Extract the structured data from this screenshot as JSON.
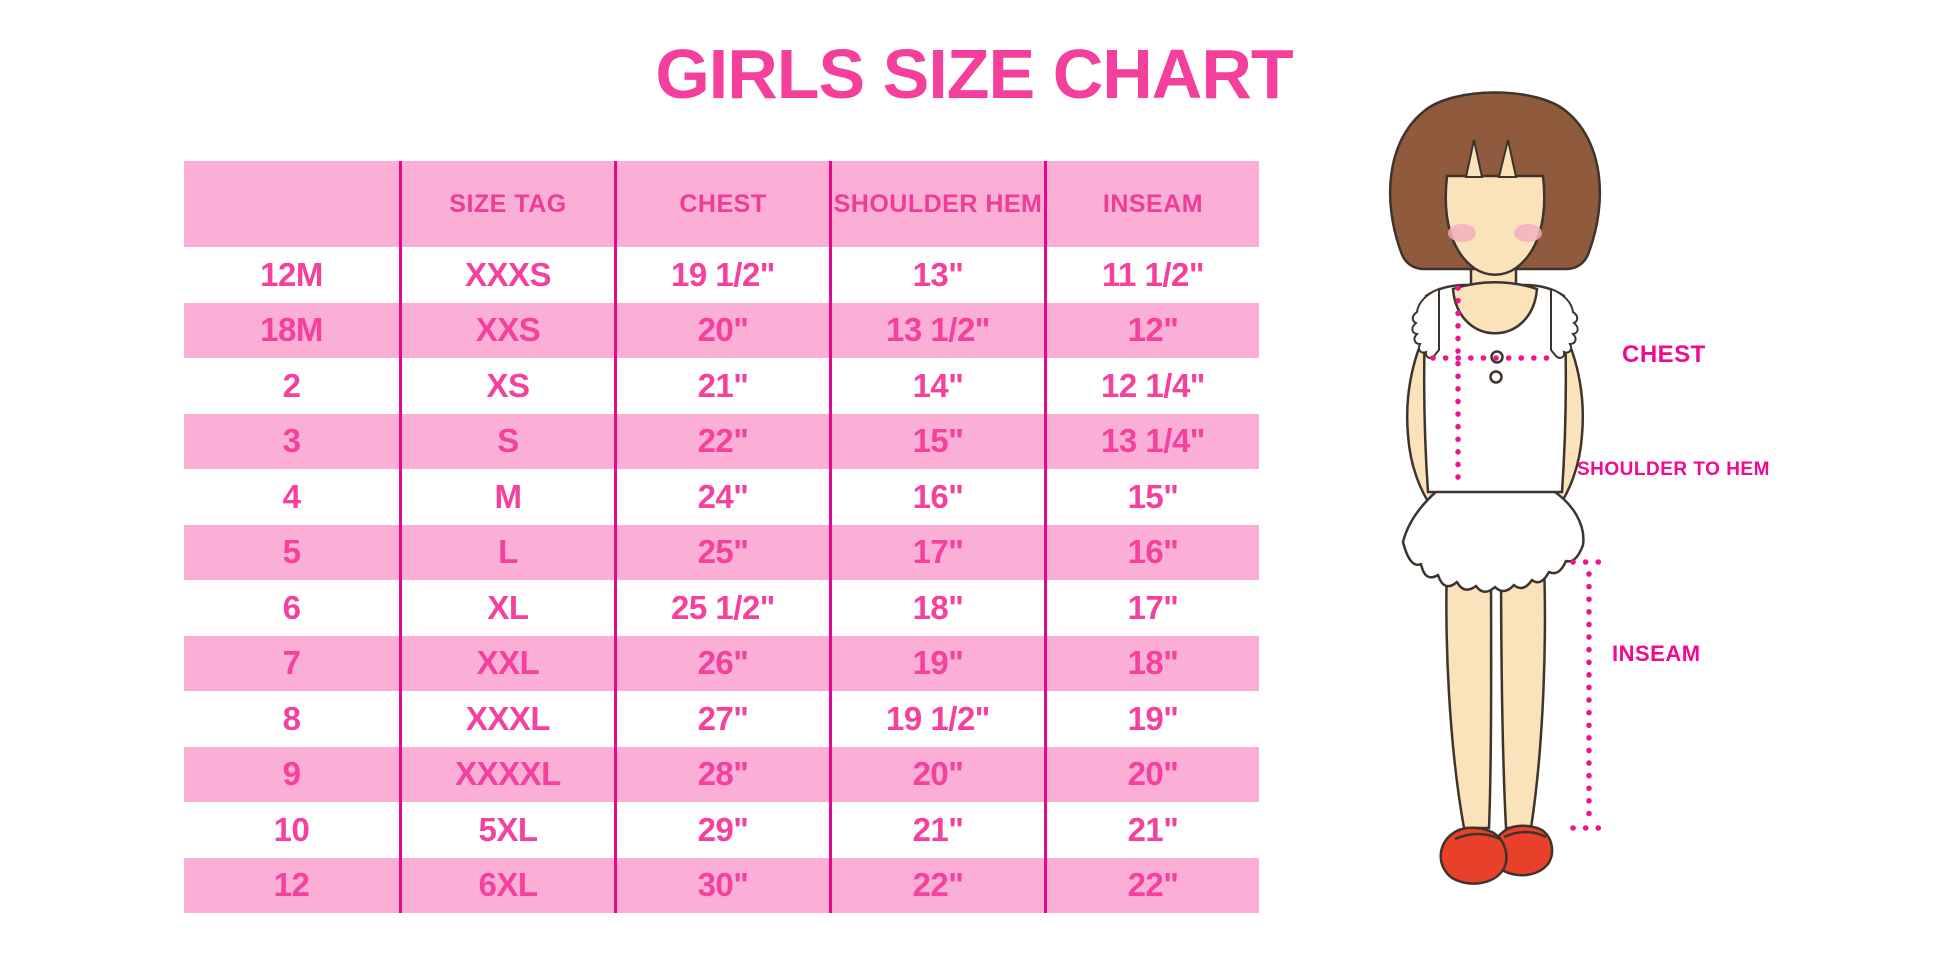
{
  "page_title": "GIRLS SIZE CHART",
  "chart_data": {
    "type": "table",
    "title": "GIRLS SIZE CHART",
    "columns": [
      "",
      "SIZE TAG",
      "CHEST",
      "SHOULDER HEM",
      "INSEAM"
    ],
    "rows": [
      [
        "12M",
        "XXXS",
        "19 1/2\"",
        "13\"",
        "11 1/2\""
      ],
      [
        "18M",
        "XXS",
        "20\"",
        "13 1/2\"",
        "12\""
      ],
      [
        "2",
        "XS",
        "21\"",
        "14\"",
        "12 1/4\""
      ],
      [
        "3",
        "S",
        "22\"",
        "15\"",
        "13 1/4\""
      ],
      [
        "4",
        "M",
        "24\"",
        "16\"",
        "15\""
      ],
      [
        "5",
        "L",
        "25\"",
        "17\"",
        "16\""
      ],
      [
        "6",
        "XL",
        "25 1/2\"",
        "18\"",
        "17\""
      ],
      [
        "7",
        "XXL",
        "26\"",
        "19\"",
        "18\""
      ],
      [
        "8",
        "XXXL",
        "27\"",
        "19 1/2\"",
        "19\""
      ],
      [
        "9",
        "XXXXL",
        "28\"",
        "20\"",
        "20\""
      ],
      [
        "10",
        "5XL",
        "29\"",
        "21\"",
        "21\""
      ],
      [
        "12",
        "6XL",
        "30\"",
        "22\"",
        "22\""
      ]
    ],
    "annotations": [
      "CHEST",
      "SHOULDER TO HEM",
      "INSEAM"
    ],
    "layout": {
      "striped": true,
      "header_background": "#FBAFD7",
      "stripe_colors": [
        "#FFFFFF",
        "#FBAFD7"
      ],
      "grid": "vertical-dividers-only",
      "legend": "none"
    }
  },
  "figure": {
    "chest_label": "CHEST",
    "shoulder_to_hem_label": "SHOULDER TO HEM",
    "inseam_label": "INSEAM"
  },
  "colors": {
    "title_pink": "#F4409C",
    "header_text_pink": "#EE3D97",
    "cell_text_pink": "#F5419D",
    "row_pink": "#FBAFD7",
    "divider_magenta": "#E5078C",
    "label_magenta": "#F1098F",
    "dotted_line_magenta": "#F0128F",
    "hair_brown": "#8F5B3C",
    "skin_tan": "#FAE3BB",
    "blush_pink": "#F4B0C0",
    "shoe_red": "#E8402A",
    "outline_dark": "#3E342C",
    "background": "#FFFFFF"
  }
}
